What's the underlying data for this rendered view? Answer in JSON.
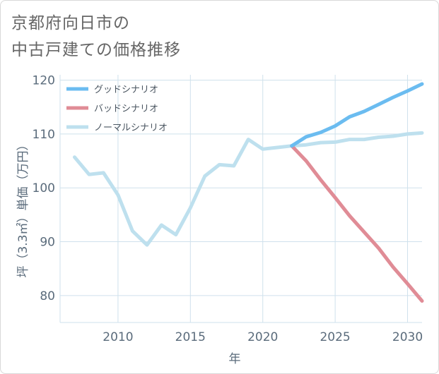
{
  "title": {
    "line1": "京都府向日市の",
    "line2": "中古戸建ての価格推移"
  },
  "colors": {
    "good": "#6bbcf0",
    "bad": "#e08c96",
    "normal": "#bee0ee",
    "grid": "#cfe1ec",
    "text": "#5a6b7b"
  },
  "chart_data": {
    "type": "line",
    "xlabel": "年",
    "ylabel": "坪（3.3㎡）単価（万円）",
    "xlim": [
      2006,
      2031
    ],
    "ylim": [
      75,
      121
    ],
    "x_ticks": [
      2010,
      2015,
      2020,
      2025,
      2030
    ],
    "y_ticks": [
      80,
      90,
      100,
      110,
      120
    ],
    "legend_position": "top-left",
    "series": [
      {
        "name": "グッドシナリオ",
        "color": "#6bbcf0",
        "x": [
          2022,
          2023,
          2024,
          2025,
          2026,
          2027,
          2028,
          2029,
          2030,
          2031
        ],
        "y": [
          107.8,
          109.5,
          110.3,
          111.5,
          113.2,
          114.2,
          115.5,
          116.8,
          118.0,
          119.3
        ]
      },
      {
        "name": "バッドシナリオ",
        "color": "#e08c96",
        "x": [
          2022,
          2023,
          2024,
          2025,
          2026,
          2027,
          2028,
          2029,
          2030,
          2031
        ],
        "y": [
          107.8,
          105.0,
          101.5,
          98.2,
          94.8,
          91.8,
          88.8,
          85.3,
          82.2,
          79.0
        ]
      },
      {
        "name": "ノーマルシナリオ",
        "color": "#bee0ee",
        "x": [
          2007,
          2008,
          2009,
          2010,
          2011,
          2012,
          2013,
          2014,
          2015,
          2016,
          2017,
          2018,
          2019,
          2020,
          2021,
          2022,
          2023,
          2024,
          2025,
          2026,
          2027,
          2028,
          2029,
          2030,
          2031
        ],
        "y": [
          105.7,
          102.5,
          102.8,
          98.7,
          92.0,
          89.4,
          93.1,
          91.3,
          96.3,
          102.2,
          104.3,
          104.1,
          109.0,
          107.2,
          107.5,
          107.8,
          108.0,
          108.4,
          108.5,
          109.0,
          109.0,
          109.4,
          109.6,
          110.0,
          110.2
        ]
      }
    ]
  }
}
